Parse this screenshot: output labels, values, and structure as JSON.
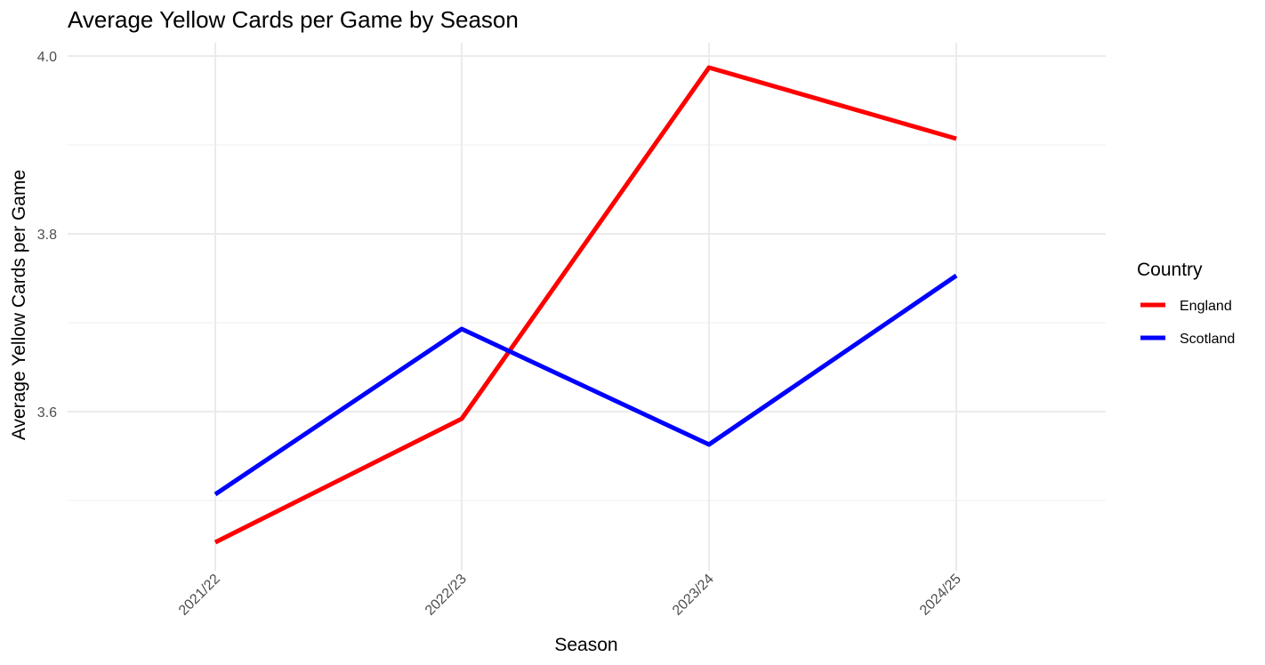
{
  "chart_data": {
    "type": "line",
    "title": "Average Yellow Cards per Game by Season",
    "xlabel": "Season",
    "ylabel": "Average Yellow Cards per Game",
    "categories": [
      "2021/22",
      "2022/23",
      "2023/24",
      "2024/25"
    ],
    "ylim": [
      3.43,
      4.03
    ],
    "yticks": [
      3.6,
      3.8,
      4.0
    ],
    "ytick_labels": [
      "3.6",
      "3.8",
      "4.0"
    ],
    "yminor": [
      3.5,
      3.7,
      3.9
    ],
    "grid": true,
    "legend": {
      "title": "Country",
      "placement": "right"
    },
    "series": [
      {
        "name": "England",
        "color": "#ff0000",
        "values": [
          3.453,
          3.592,
          3.987,
          3.907
        ]
      },
      {
        "name": "Scotland",
        "color": "#0000ff",
        "values": [
          3.507,
          3.693,
          3.563,
          3.753
        ]
      }
    ]
  }
}
